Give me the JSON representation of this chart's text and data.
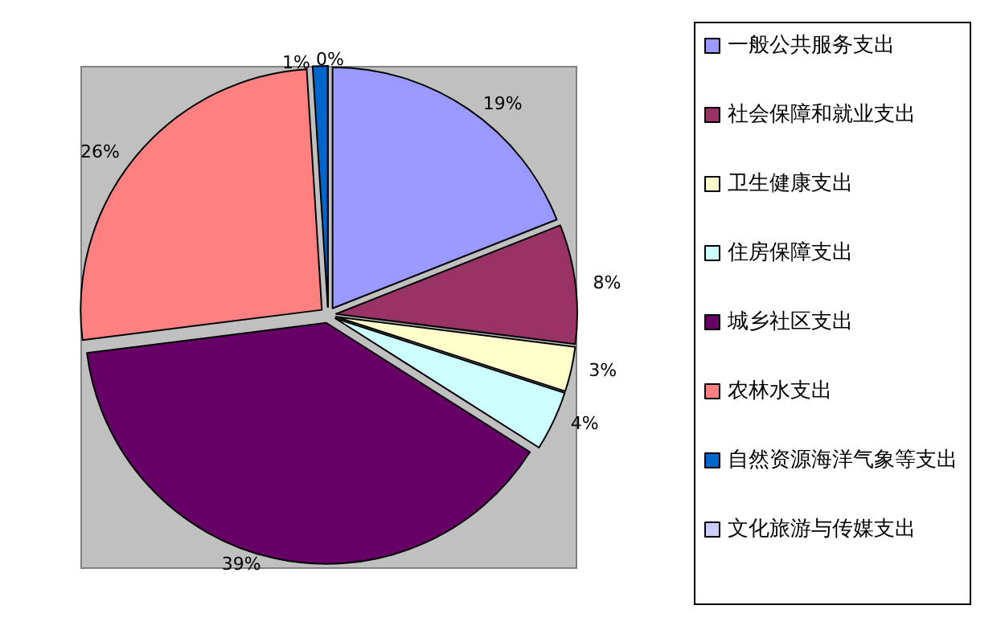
{
  "chart_data": {
    "type": "pie",
    "categories": [
      "一般公共服务支出",
      "社会保障和就业支出",
      "卫生健康支出",
      "住房保障支出",
      "城乡社区支出",
      "农林水支出",
      "自然资源海洋气象等支出",
      "文化旅游与传媒支出"
    ],
    "values": [
      19,
      8,
      3,
      4,
      39,
      26,
      1,
      0
    ],
    "value_labels": [
      "19%",
      "8%",
      "3%",
      "4%",
      "39%",
      "26%",
      "1%",
      "0%"
    ],
    "colors": [
      "#9999ff",
      "#993366",
      "#ffffcc",
      "#ccffff",
      "#660066",
      "#ff8080",
      "#0066cc",
      "#ccccff"
    ],
    "legend": "right"
  }
}
